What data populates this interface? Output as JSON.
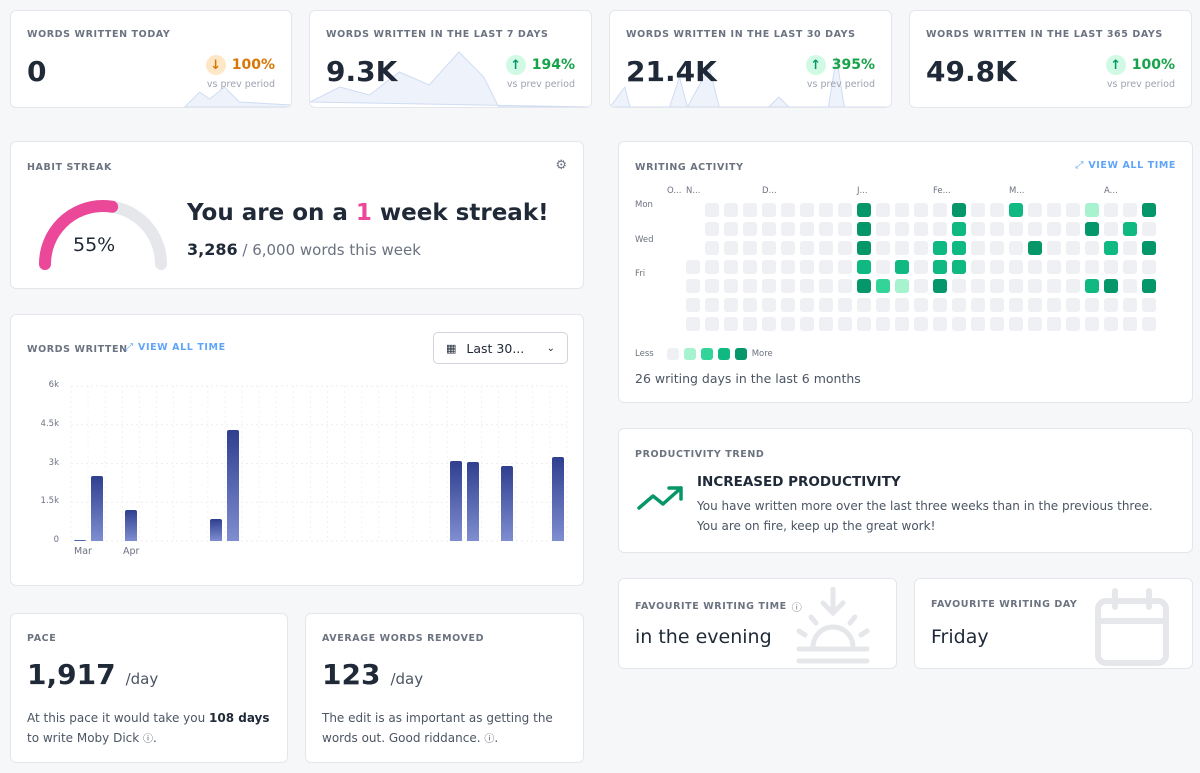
{
  "stats": [
    {
      "label": "WORDS WRITTEN TODAY",
      "value": "0",
      "change": "100%",
      "direction": "down",
      "vs": "vs prev period",
      "arrow": "↓"
    },
    {
      "label": "WORDS WRITTEN IN THE LAST 7 DAYS",
      "value": "9.3K",
      "change": "194%",
      "direction": "up",
      "vs": "vs prev period",
      "arrow": "↑"
    },
    {
      "label": "WORDS WRITTEN IN THE LAST 30 DAYS",
      "value": "21.4K",
      "change": "395%",
      "direction": "up",
      "vs": "vs prev period",
      "arrow": "↑"
    },
    {
      "label": "WORDS WRITTEN IN THE LAST 365 DAYS",
      "value": "49.8K",
      "change": "100%",
      "direction": "up",
      "vs": "vs prev period",
      "arrow": "↑"
    }
  ],
  "streak": {
    "label": "HABIT STREAK",
    "percent": "55%",
    "percent_value": 55,
    "headline_pre": "You are on a ",
    "headline_num": "1",
    "headline_post": " week streak!",
    "words": "3,286",
    "goal": " / 6,000 words this week",
    "settings_icon": "gear-icon"
  },
  "words_chart": {
    "label": "WORDS WRITTEN",
    "view_all": "VIEW ALL TIME",
    "range": "Last 30...",
    "chart_data": {
      "type": "bar",
      "title": "Words written",
      "x_labels": [
        "Mar",
        "Apr"
      ],
      "y_ticks": [
        "6k",
        "4.5k",
        "3k",
        "1.5k",
        "0"
      ],
      "ylim": [
        0,
        6000
      ],
      "values": [
        30,
        2500,
        0,
        1200,
        0,
        0,
        0,
        0,
        850,
        4300,
        0,
        0,
        0,
        0,
        0,
        0,
        0,
        0,
        0,
        0,
        0,
        0,
        3100,
        3050,
        0,
        2900,
        0,
        0,
        3250
      ]
    }
  },
  "activity": {
    "label": "WRITING ACTIVITY",
    "view_all": "VIEW ALL TIME",
    "months": [
      "O...",
      "N...",
      "D...",
      "J...",
      "Fe...",
      "M...",
      "A..."
    ],
    "days": [
      "Mon",
      "Wed",
      "Fri"
    ],
    "legend_less": "Less",
    "legend_more": "More",
    "summary": "26 writing days in the last 6 months"
  },
  "trend": {
    "label": "PRODUCTIVITY TREND",
    "title": "INCREASED PRODUCTIVITY",
    "line1": "You have written more over the last three weeks than in the previous three.",
    "line2": "You are on fire, keep up the great work!"
  },
  "fav_time": {
    "label": "FAVOURITE WRITING TIME",
    "value": "in the evening"
  },
  "fav_day": {
    "label": "FAVOURITE WRITING DAY",
    "value": "Friday"
  },
  "pace": {
    "label": "PACE",
    "value": "1,917",
    "unit": "/day",
    "text_pre": "At this pace it would take you ",
    "days": "108 days",
    "text_post": "to write Moby Dick"
  },
  "removed": {
    "label": "AVERAGE WORDS REMOVED",
    "value": "123",
    "unit": "/day",
    "line1": "The edit is as important as getting the",
    "line2": "words out. Good riddance."
  },
  "colors": {
    "accent": "#ec4899",
    "green": "#10b981",
    "blue": "#60a5fa"
  }
}
